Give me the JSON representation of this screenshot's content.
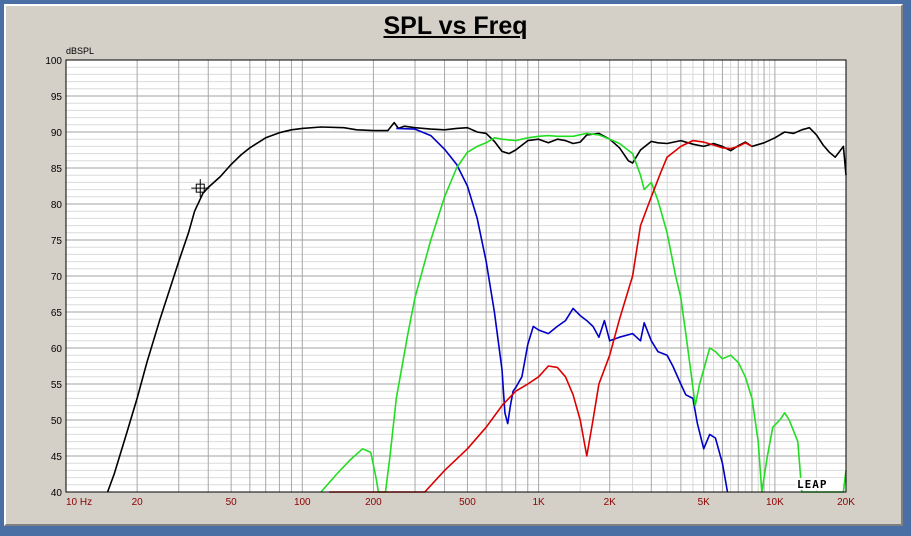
{
  "chart_data": {
    "type": "line",
    "title": "SPL vs Freq",
    "xlabel": "",
    "ylabel": "dBSPL",
    "x_scale": "log",
    "xlim": [
      10,
      20000
    ],
    "ylim": [
      40,
      100
    ],
    "grid": true,
    "yticks": [
      40,
      45,
      50,
      55,
      60,
      65,
      70,
      75,
      80,
      85,
      90,
      95,
      100
    ],
    "xtick_values": [
      10,
      20,
      50,
      100,
      200,
      500,
      1000,
      2000,
      5000,
      10000,
      20000
    ],
    "xtick_labels": [
      "10  Hz",
      "20",
      "50",
      "100",
      "200",
      "500",
      "1K",
      "2K",
      "5K",
      "10K",
      "20K"
    ],
    "watermark": "LEAP",
    "marker": {
      "x": 37,
      "y": 82.2
    },
    "series": [
      {
        "color": "#000000",
        "points": [
          [
            15,
            40
          ],
          [
            16,
            42.5
          ],
          [
            18,
            48
          ],
          [
            20,
            53
          ],
          [
            22,
            58
          ],
          [
            25,
            64
          ],
          [
            28,
            69
          ],
          [
            30,
            72
          ],
          [
            33,
            76
          ],
          [
            35,
            79
          ],
          [
            38,
            81.5
          ],
          [
            40,
            82.3
          ],
          [
            45,
            83.8
          ],
          [
            50,
            85.5
          ],
          [
            55,
            86.8
          ],
          [
            60,
            87.8
          ],
          [
            70,
            89.2
          ],
          [
            80,
            89.9
          ],
          [
            90,
            90.3
          ],
          [
            100,
            90.5
          ],
          [
            120,
            90.7
          ],
          [
            150,
            90.6
          ],
          [
            170,
            90.3
          ],
          [
            200,
            90.2
          ],
          [
            230,
            90.2
          ],
          [
            245,
            91.3
          ],
          [
            255,
            90.5
          ],
          [
            270,
            90.8
          ],
          [
            300,
            90.6
          ],
          [
            350,
            90.4
          ],
          [
            400,
            90.3
          ],
          [
            450,
            90.5
          ],
          [
            500,
            90.6
          ],
          [
            550,
            90.0
          ],
          [
            600,
            89.8
          ],
          [
            650,
            88.7
          ],
          [
            700,
            87.3
          ],
          [
            750,
            87.0
          ],
          [
            800,
            87.5
          ],
          [
            900,
            88.8
          ],
          [
            1000,
            89.0
          ],
          [
            1100,
            88.5
          ],
          [
            1200,
            89.0
          ],
          [
            1300,
            88.8
          ],
          [
            1400,
            88.4
          ],
          [
            1500,
            88.6
          ],
          [
            1600,
            89.6
          ],
          [
            1800,
            89.8
          ],
          [
            2000,
            89.0
          ],
          [
            2200,
            87.8
          ],
          [
            2400,
            86.0
          ],
          [
            2500,
            85.7
          ],
          [
            2700,
            87.5
          ],
          [
            3000,
            88.7
          ],
          [
            3200,
            88.5
          ],
          [
            3500,
            88.4
          ],
          [
            4000,
            88.8
          ],
          [
            4500,
            88.3
          ],
          [
            5000,
            88.0
          ],
          [
            5500,
            88.4
          ],
          [
            6000,
            88.0
          ],
          [
            6500,
            87.4
          ],
          [
            7000,
            88.1
          ],
          [
            7500,
            88.6
          ],
          [
            8000,
            88.0
          ],
          [
            9000,
            88.5
          ],
          [
            10000,
            89.2
          ],
          [
            11000,
            90.0
          ],
          [
            12000,
            89.8
          ],
          [
            13000,
            90.3
          ],
          [
            14000,
            90.6
          ],
          [
            15000,
            89.6
          ],
          [
            16000,
            88.2
          ],
          [
            17000,
            87.2
          ],
          [
            18000,
            86.5
          ],
          [
            19000,
            87.5
          ],
          [
            19500,
            88.0
          ],
          [
            20000,
            84.0
          ]
        ]
      },
      {
        "color": "#0000c8",
        "points": [
          [
            250,
            90.5
          ],
          [
            300,
            90.4
          ],
          [
            350,
            89.5
          ],
          [
            400,
            87.6
          ],
          [
            450,
            85.5
          ],
          [
            500,
            82.5
          ],
          [
            550,
            78.0
          ],
          [
            600,
            72.0
          ],
          [
            650,
            65.0
          ],
          [
            700,
            57.0
          ],
          [
            720,
            51.0
          ],
          [
            740,
            49.5
          ],
          [
            760,
            52.0
          ],
          [
            780,
            54.0
          ],
          [
            800,
            54.5
          ],
          [
            850,
            56.0
          ],
          [
            900,
            60.5
          ],
          [
            950,
            63.0
          ],
          [
            1000,
            62.5
          ],
          [
            1100,
            62.0
          ],
          [
            1200,
            63.0
          ],
          [
            1300,
            63.8
          ],
          [
            1400,
            65.5
          ],
          [
            1500,
            64.5
          ],
          [
            1600,
            63.8
          ],
          [
            1700,
            63.0
          ],
          [
            1800,
            61.5
          ],
          [
            1900,
            63.8
          ],
          [
            2000,
            61.0
          ],
          [
            2200,
            61.5
          ],
          [
            2500,
            62.0
          ],
          [
            2700,
            61.0
          ],
          [
            2800,
            63.5
          ],
          [
            3000,
            61.0
          ],
          [
            3200,
            59.5
          ],
          [
            3500,
            59.0
          ],
          [
            3700,
            57.5
          ],
          [
            4000,
            55.0
          ],
          [
            4200,
            53.5
          ],
          [
            4500,
            53.0
          ],
          [
            4700,
            49.5
          ],
          [
            5000,
            46.0
          ],
          [
            5300,
            48.0
          ],
          [
            5600,
            47.5
          ],
          [
            6000,
            44.0
          ],
          [
            6300,
            40.0
          ]
        ]
      },
      {
        "color": "#22dd22",
        "points": [
          [
            120,
            40
          ],
          [
            140,
            42.5
          ],
          [
            160,
            44.5
          ],
          [
            180,
            46.0
          ],
          [
            195,
            45.5
          ],
          [
            205,
            42.0
          ],
          [
            210,
            40.0
          ],
          [
            225,
            40.0
          ],
          [
            235,
            45.0
          ],
          [
            250,
            53.0
          ],
          [
            280,
            62.0
          ],
          [
            300,
            67.0
          ],
          [
            350,
            75.0
          ],
          [
            400,
            81.0
          ],
          [
            450,
            85.0
          ],
          [
            500,
            87.2
          ],
          [
            550,
            88.0
          ],
          [
            600,
            88.5
          ],
          [
            650,
            89.2
          ],
          [
            700,
            89.0
          ],
          [
            800,
            88.8
          ],
          [
            900,
            89.2
          ],
          [
            1000,
            89.4
          ],
          [
            1100,
            89.5
          ],
          [
            1200,
            89.4
          ],
          [
            1400,
            89.4
          ],
          [
            1600,
            89.8
          ],
          [
            1800,
            89.6
          ],
          [
            2000,
            89.0
          ],
          [
            2200,
            88.4
          ],
          [
            2500,
            87.0
          ],
          [
            2700,
            84.0
          ],
          [
            2800,
            82.0
          ],
          [
            3000,
            83.0
          ],
          [
            3200,
            80.5
          ],
          [
            3500,
            76.0
          ],
          [
            3800,
            70.0
          ],
          [
            4000,
            67.0
          ],
          [
            4200,
            62.0
          ],
          [
            4400,
            57.0
          ],
          [
            4600,
            52.0
          ],
          [
            4800,
            55.0
          ],
          [
            5000,
            57.0
          ],
          [
            5300,
            60.0
          ],
          [
            5600,
            59.5
          ],
          [
            6000,
            58.5
          ],
          [
            6500,
            59.0
          ],
          [
            7000,
            58.0
          ],
          [
            7500,
            56.0
          ],
          [
            8000,
            53.0
          ],
          [
            8500,
            47.0
          ],
          [
            8800,
            40.0
          ],
          [
            9300,
            45.0
          ],
          [
            9800,
            49.0
          ],
          [
            10500,
            50.0
          ],
          [
            11000,
            51.0
          ],
          [
            11500,
            50.0
          ],
          [
            12500,
            47.0
          ],
          [
            13000,
            40.0
          ],
          [
            19500,
            40.0
          ],
          [
            20000,
            43.0
          ]
        ]
      },
      {
        "color": "#dd0000",
        "points": [
          [
            130,
            40
          ],
          [
            330,
            40
          ],
          [
            400,
            43.0
          ],
          [
            500,
            46.0
          ],
          [
            600,
            49.0
          ],
          [
            700,
            52.0
          ],
          [
            800,
            54.0
          ],
          [
            900,
            55.0
          ],
          [
            1000,
            56.0
          ],
          [
            1100,
            57.5
          ],
          [
            1200,
            57.3
          ],
          [
            1300,
            56.0
          ],
          [
            1400,
            53.5
          ],
          [
            1500,
            50.0
          ],
          [
            1600,
            45.0
          ],
          [
            1700,
            50.0
          ],
          [
            1800,
            55.0
          ],
          [
            2000,
            59.0
          ],
          [
            2200,
            64.0
          ],
          [
            2500,
            70.0
          ],
          [
            2700,
            77.0
          ],
          [
            3000,
            81.0
          ],
          [
            3300,
            84.5
          ],
          [
            3500,
            86.5
          ],
          [
            4000,
            88.0
          ],
          [
            4500,
            88.8
          ],
          [
            5000,
            88.6
          ],
          [
            5500,
            88.2
          ],
          [
            6000,
            87.8
          ],
          [
            6500,
            87.7
          ],
          [
            7000,
            88.0
          ],
          [
            7500,
            88.5
          ],
          [
            8000,
            88.0
          ]
        ]
      }
    ]
  }
}
